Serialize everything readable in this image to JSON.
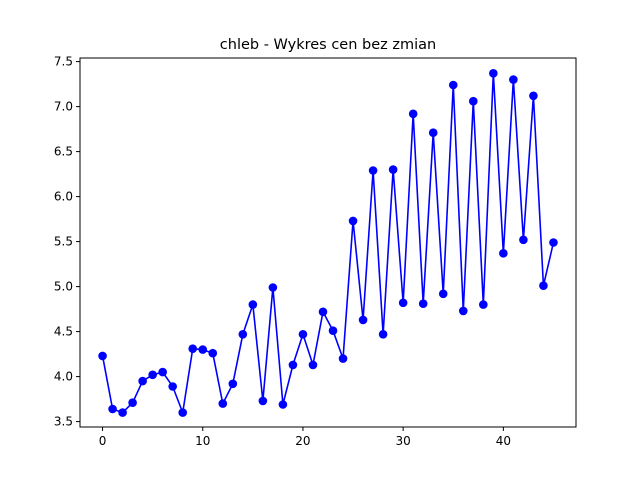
{
  "chart_data": {
    "type": "line",
    "title": "chleb - Wykres cen bez zmian",
    "xlabel": "",
    "ylabel": "",
    "xlim": [
      -2.25,
      47.25
    ],
    "ylim": [
      3.44,
      7.54
    ],
    "x_ticks": [
      0,
      10,
      20,
      30,
      40
    ],
    "y_ticks": [
      3.5,
      4.0,
      4.5,
      5.0,
      5.5,
      6.0,
      6.5,
      7.0,
      7.5
    ],
    "x_tick_labels": [
      "0",
      "10",
      "20",
      "30",
      "40"
    ],
    "y_tick_labels": [
      "3.5",
      "4.0",
      "4.5",
      "5.0",
      "5.5",
      "6.0",
      "6.5",
      "7.0",
      "7.5"
    ],
    "grid": false,
    "legend": "none",
    "series": [
      {
        "color": "#0000ff",
        "marker": "circle",
        "x": [
          0,
          1,
          2,
          3,
          4,
          5,
          6,
          7,
          8,
          9,
          10,
          11,
          12,
          13,
          14,
          15,
          16,
          17,
          18,
          19,
          20,
          21,
          22,
          23,
          24,
          25,
          26,
          27,
          28,
          29,
          30,
          31,
          32,
          33,
          34,
          35,
          36,
          37,
          38,
          39,
          40,
          41,
          42,
          43,
          44,
          45
        ],
        "values": [
          4.23,
          3.64,
          3.6,
          3.71,
          3.95,
          4.02,
          4.05,
          3.89,
          3.6,
          4.31,
          4.3,
          4.26,
          3.7,
          3.92,
          4.47,
          4.8,
          3.73,
          4.99,
          3.69,
          4.13,
          4.47,
          4.13,
          4.72,
          4.51,
          4.2,
          5.73,
          4.63,
          6.29,
          4.47,
          6.3,
          4.82,
          6.92,
          4.81,
          6.71,
          4.92,
          7.24,
          4.73,
          7.06,
          4.8,
          7.37,
          5.37,
          7.3,
          5.52,
          7.12,
          5.01,
          5.49
        ]
      }
    ]
  }
}
